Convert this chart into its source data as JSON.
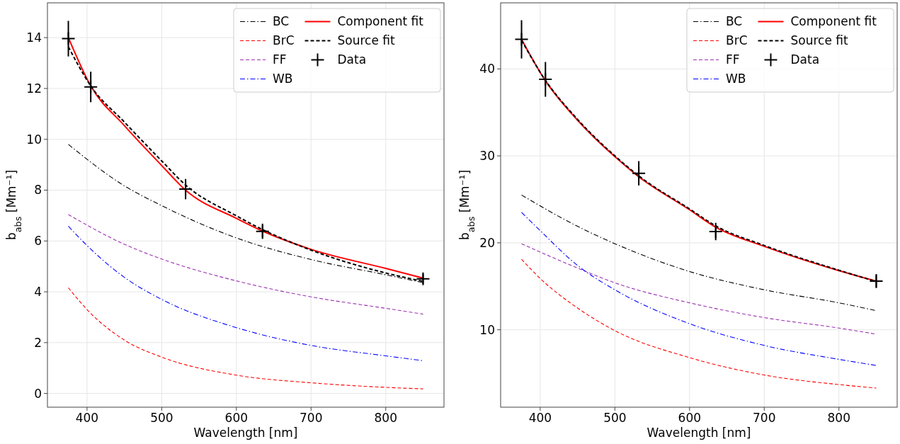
{
  "chart_data": [
    {
      "type": "line",
      "xlabel": "Wavelength [nm]",
      "ylabel": "b$_{abs}$  [Mm⁻¹]",
      "xlim": [
        347,
        878
      ],
      "ylim": [
        -0.54,
        15.37
      ],
      "xticks": [
        400,
        500,
        600,
        700,
        800
      ],
      "yticks": [
        0,
        2,
        4,
        6,
        8,
        10,
        12,
        14
      ],
      "grid": true,
      "legend": "top right",
      "series": [
        {
          "name": "BC",
          "color": "#000000",
          "line_style": "dashdot",
          "x": [
            375,
            450,
            500,
            600,
            700,
            800,
            850
          ],
          "values": [
            9.8,
            8.17,
            7.39,
            6.12,
            5.27,
            4.67,
            4.36
          ]
        },
        {
          "name": "BrC",
          "color": "#ff0000",
          "line_style": "dashed",
          "x": [
            375,
            400,
            450,
            500,
            600,
            700,
            800,
            850
          ],
          "values": [
            4.16,
            3.3,
            2.1,
            1.43,
            0.72,
            0.42,
            0.24,
            0.18
          ]
        },
        {
          "name": "FF",
          "color": "#9b30b0",
          "line_style": "dashed",
          "x": [
            375,
            450,
            500,
            600,
            700,
            800,
            850
          ],
          "values": [
            7.04,
            5.87,
            5.29,
            4.43,
            3.8,
            3.35,
            3.12
          ]
        },
        {
          "name": "WB",
          "color": "#0000ff",
          "line_style": "dashdot",
          "x": [
            375,
            400,
            450,
            500,
            600,
            700,
            800,
            850
          ],
          "values": [
            6.58,
            5.82,
            4.57,
            3.7,
            2.59,
            1.89,
            1.48,
            1.29
          ]
        },
        {
          "name": "Component fit",
          "color": "#ff0000",
          "line_style": "solid",
          "x": [
            375,
            405,
            450,
            500,
            532,
            600,
            635,
            700,
            800,
            850
          ],
          "values": [
            14.0,
            12.1,
            10.54,
            8.97,
            8.0,
            6.89,
            6.39,
            5.67,
            4.92,
            4.54
          ]
        },
        {
          "name": "Source fit",
          "color": "#000000",
          "line_style": "dashed",
          "x": [
            375,
            405,
            450,
            500,
            532,
            600,
            635,
            700,
            800,
            850
          ],
          "values": [
            13.64,
            12.1,
            10.68,
            9.15,
            8.2,
            6.99,
            6.45,
            5.64,
            4.74,
            4.41
          ]
        },
        {
          "name": "Data",
          "type": "scatter",
          "marker": "cross",
          "color": "#000000",
          "x": [
            375,
            405,
            532,
            635,
            850
          ],
          "values": [
            13.96,
            12.06,
            8.04,
            6.38,
            4.51
          ],
          "errors": [
            0.7,
            0.6,
            0.4,
            0.3,
            0.2
          ]
        }
      ]
    },
    {
      "type": "line",
      "xlabel": "Wavelength [nm]",
      "ylabel": "b$_{abs}$  [Mm⁻¹]",
      "xlim": [
        347,
        878
      ],
      "ylim": [
        1.1,
        47.6
      ],
      "xticks": [
        400,
        500,
        600,
        700,
        800
      ],
      "yticks": [
        10,
        20,
        30,
        40
      ],
      "grid": true,
      "legend": "top right",
      "series": [
        {
          "name": "BC",
          "color": "#000000",
          "line_style": "dashdot",
          "x": [
            375,
            450,
            500,
            600,
            700,
            800,
            850
          ],
          "values": [
            25.5,
            21.9,
            19.9,
            16.7,
            14.6,
            13.1,
            12.2
          ]
        },
        {
          "name": "BrC",
          "color": "#ff0000",
          "line_style": "dashed",
          "x": [
            375,
            400,
            450,
            500,
            600,
            700,
            800,
            850
          ],
          "values": [
            18.1,
            15.9,
            12.5,
            9.9,
            6.8,
            4.8,
            3.7,
            3.3
          ]
        },
        {
          "name": "FF",
          "color": "#9b30b0",
          "line_style": "dashed",
          "x": [
            375,
            450,
            500,
            600,
            700,
            800,
            850
          ],
          "values": [
            19.9,
            17.1,
            15.4,
            13.1,
            11.4,
            10.2,
            9.5
          ]
        },
        {
          "name": "WB",
          "color": "#0000ff",
          "line_style": "dashdot",
          "x": [
            375,
            400,
            450,
            500,
            600,
            700,
            800,
            850
          ],
          "values": [
            23.5,
            21.4,
            17.4,
            14.6,
            10.7,
            8.2,
            6.6,
            5.9
          ]
        },
        {
          "name": "Component fit",
          "color": "#ff0000",
          "line_style": "solid",
          "x": [
            375,
            405,
            450,
            500,
            532,
            600,
            635,
            700,
            800,
            850
          ],
          "values": [
            43.4,
            38.9,
            34.1,
            29.9,
            27.6,
            23.8,
            21.8,
            19.6,
            16.8,
            15.6
          ]
        },
        {
          "name": "Source fit",
          "color": "#000000",
          "line_style": "dashed",
          "x": [
            375,
            405,
            450,
            500,
            532,
            600,
            635,
            700,
            800,
            850
          ],
          "values": [
            43.3,
            38.95,
            34.2,
            30.0,
            27.7,
            23.9,
            21.95,
            19.7,
            16.85,
            15.55
          ]
        },
        {
          "name": "Data",
          "type": "scatter",
          "marker": "cross",
          "color": "#000000",
          "x": [
            375,
            407,
            532,
            635,
            850
          ],
          "values": [
            43.4,
            38.8,
            28.0,
            21.3,
            15.6
          ],
          "errors": [
            2.2,
            2.0,
            1.4,
            1.0,
            0.8
          ]
        }
      ]
    }
  ]
}
